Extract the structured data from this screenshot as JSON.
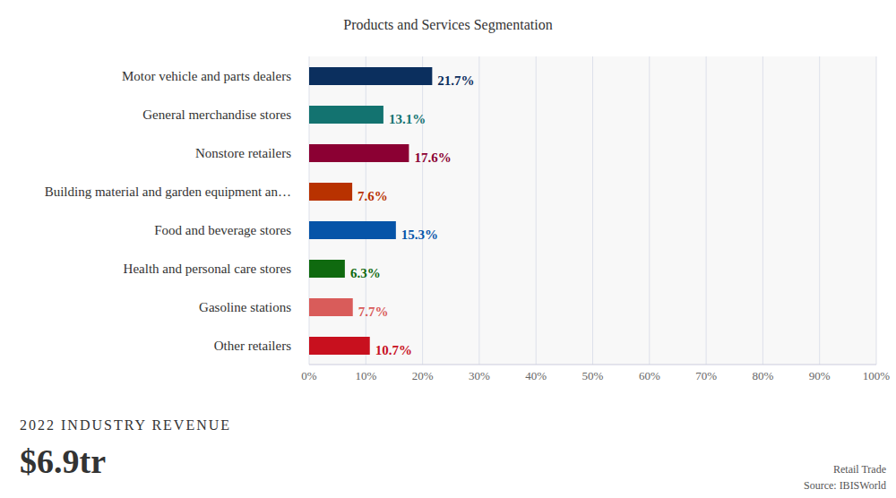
{
  "chart_data": {
    "type": "bar",
    "orientation": "horizontal",
    "title": "Products and Services Segmentation",
    "categories": [
      "Motor vehicle and parts dealers",
      "General merchandise stores",
      "Nonstore retailers",
      "Building material and garden equipment an…",
      "Food and beverage stores",
      "Health and personal care stores",
      "Gasoline stations",
      "Other retailers"
    ],
    "values": [
      21.7,
      13.1,
      17.6,
      7.6,
      15.3,
      6.3,
      7.7,
      10.7
    ],
    "value_labels": [
      "21.7%",
      "13.1%",
      "17.6%",
      "7.6%",
      "15.3%",
      "6.3%",
      "7.7%",
      "10.7%"
    ],
    "colors": [
      "#0b2f5e",
      "#137370",
      "#8b0033",
      "#b83200",
      "#0654a8",
      "#0f6a0f",
      "#d95c5a",
      "#c8101e"
    ],
    "xlim": [
      0,
      100
    ],
    "xticks": [
      {
        "value": 0,
        "label": "0%"
      },
      {
        "value": 10,
        "label": "10%"
      },
      {
        "value": 20,
        "label": "20%"
      },
      {
        "value": 30,
        "label": "30%"
      },
      {
        "value": 40,
        "label": "40%"
      },
      {
        "value": 50,
        "label": "50%"
      },
      {
        "value": 60,
        "label": "60%"
      },
      {
        "value": 70,
        "label": "70%"
      },
      {
        "value": 80,
        "label": "80%"
      },
      {
        "value": 90,
        "label": "90%"
      },
      {
        "value": 100,
        "label": "100%"
      }
    ],
    "grid": true,
    "data_labels": true,
    "annotations": [
      "2022 INDUSTRY REVENUE",
      "$6.9tr",
      "Retail Trade",
      "Source: IBISWorld"
    ]
  }
}
